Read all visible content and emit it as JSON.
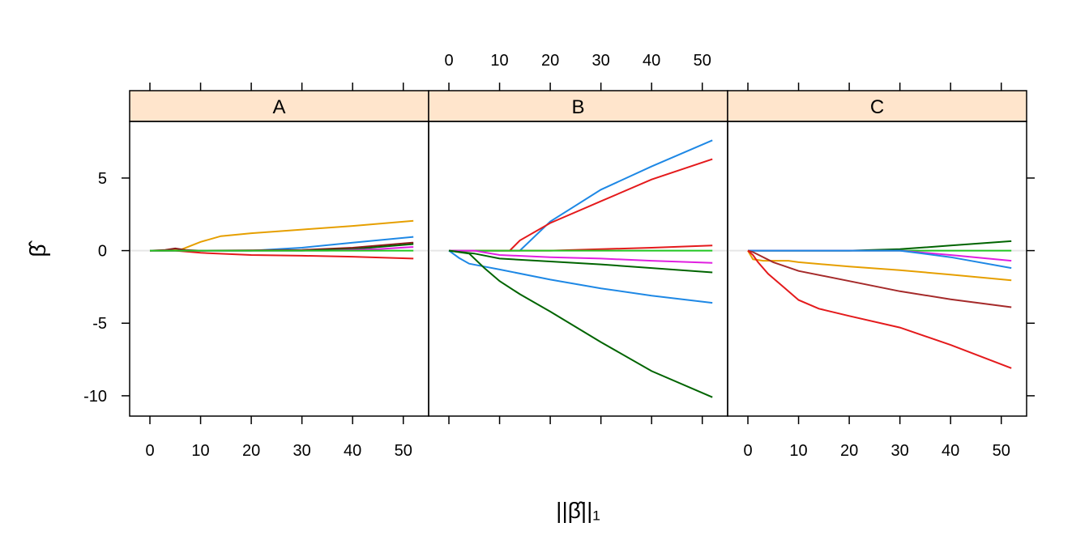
{
  "chart_data": {
    "type": "line",
    "title": "",
    "xlabel": "||β̂||₁",
    "ylabel": "β̂",
    "xlim": [
      -4,
      55
    ],
    "ylim": [
      -11.4,
      8.9
    ],
    "x_ticks": [
      0,
      10,
      20,
      30,
      40,
      50
    ],
    "y_ticks": [
      5,
      0,
      -5,
      -10
    ],
    "zero_line": true,
    "grid": false,
    "legend": "none",
    "panels": [
      {
        "label": "A",
        "series": [
          {
            "color": "#E69F00",
            "x": [
              0,
              6,
              10,
              14,
              20,
              30,
              40,
              52
            ],
            "y": [
              0,
              0.05,
              0.6,
              1.0,
              1.2,
              1.45,
              1.7,
              2.05
            ]
          },
          {
            "color": "#1E88E5",
            "x": [
              0,
              20,
              30,
              40,
              52
            ],
            "y": [
              0,
              0,
              0.2,
              0.55,
              0.95
            ]
          },
          {
            "color": "#8B1A1A",
            "x": [
              0,
              3,
              5,
              7,
              10,
              30,
              40,
              52
            ],
            "y": [
              0,
              0.05,
              0.15,
              0.05,
              0,
              0.05,
              0.2,
              0.55
            ]
          },
          {
            "color": "#E41A1C",
            "x": [
              0,
              5,
              10,
              20,
              30,
              40,
              52
            ],
            "y": [
              0,
              0,
              -0.15,
              -0.3,
              -0.35,
              -0.42,
              -0.55
            ]
          },
          {
            "color": "#006400",
            "x": [
              0,
              30,
              40,
              52
            ],
            "y": [
              0,
              0,
              0.1,
              0.45
            ]
          },
          {
            "color": "#E020E0",
            "x": [
              0,
              35,
              45,
              52
            ],
            "y": [
              0,
              0,
              0.1,
              0.25
            ]
          },
          {
            "color": "#22C722",
            "x": [
              0,
              52
            ],
            "y": [
              0,
              0
            ]
          }
        ]
      },
      {
        "label": "B",
        "series": [
          {
            "color": "#1E88E5",
            "x": [
              0,
              14,
              20,
              30,
              40,
              52
            ],
            "y": [
              0,
              0,
              2.0,
              4.2,
              5.8,
              7.6
            ]
          },
          {
            "color": "#E41A1C",
            "x": [
              0,
              12,
              14,
              20,
              30,
              40,
              52
            ],
            "y": [
              0,
              0,
              0.7,
              1.9,
              3.4,
              4.9,
              6.3
            ]
          },
          {
            "color": "#E41A1C",
            "x": [
              0,
              20,
              30,
              40,
              52
            ],
            "y": [
              0,
              0,
              0.1,
              0.2,
              0.35
            ]
          },
          {
            "color": "#22C722",
            "x": [
              0,
              52
            ],
            "y": [
              0,
              0
            ]
          },
          {
            "color": "#E020E0",
            "x": [
              0,
              5,
              10,
              20,
              30,
              40,
              52
            ],
            "y": [
              0,
              0,
              -0.3,
              -0.45,
              -0.55,
              -0.7,
              -0.85
            ]
          },
          {
            "color": "#006400",
            "x": [
              0,
              5,
              10,
              20,
              30,
              40,
              52
            ],
            "y": [
              0,
              -0.2,
              -0.55,
              -0.75,
              -0.95,
              -1.2,
              -1.5
            ]
          },
          {
            "color": "#1E88E5",
            "x": [
              0,
              2,
              4,
              7,
              10,
              20,
              30,
              40,
              52
            ],
            "y": [
              0,
              -0.5,
              -0.9,
              -1.1,
              -1.3,
              -2.0,
              -2.6,
              -3.1,
              -3.6
            ]
          },
          {
            "color": "#006400",
            "x": [
              0,
              4,
              7,
              10,
              14,
              20,
              30,
              40,
              52
            ],
            "y": [
              0,
              -0.2,
              -1.2,
              -2.1,
              -3.0,
              -4.2,
              -6.3,
              -8.3,
              -10.1
            ]
          }
        ]
      },
      {
        "label": "C",
        "series": [
          {
            "color": "#006400",
            "x": [
              0,
              20,
              30,
              40,
              52
            ],
            "y": [
              0,
              0,
              0.1,
              0.35,
              0.65
            ]
          },
          {
            "color": "#22C722",
            "x": [
              0,
              52
            ],
            "y": [
              0,
              0
            ]
          },
          {
            "color": "#E020E0",
            "x": [
              0,
              30,
              40,
              52
            ],
            "y": [
              0,
              0,
              -0.3,
              -0.7
            ]
          },
          {
            "color": "#1E88E5",
            "x": [
              0,
              30,
              40,
              52
            ],
            "y": [
              0,
              0,
              -0.45,
              -1.2
            ]
          },
          {
            "color": "#E69F00",
            "x": [
              0,
              1,
              3,
              8,
              10,
              20,
              30,
              40,
              52
            ],
            "y": [
              0,
              -0.6,
              -0.7,
              -0.7,
              -0.8,
              -1.1,
              -1.35,
              -1.65,
              -2.05
            ]
          },
          {
            "color": "#A52A2A",
            "x": [
              0,
              1,
              5,
              10,
              20,
              30,
              40,
              52
            ],
            "y": [
              0,
              -0.1,
              -0.8,
              -1.4,
              -2.1,
              -2.8,
              -3.35,
              -3.9
            ]
          },
          {
            "color": "#E41A1C",
            "x": [
              0,
              1,
              2,
              4,
              7,
              10,
              14,
              20,
              30,
              40,
              52
            ],
            "y": [
              0,
              -0.3,
              -0.8,
              -1.6,
              -2.5,
              -3.4,
              -4.0,
              -4.5,
              -5.3,
              -6.5,
              -8.1
            ]
          }
        ]
      }
    ]
  }
}
